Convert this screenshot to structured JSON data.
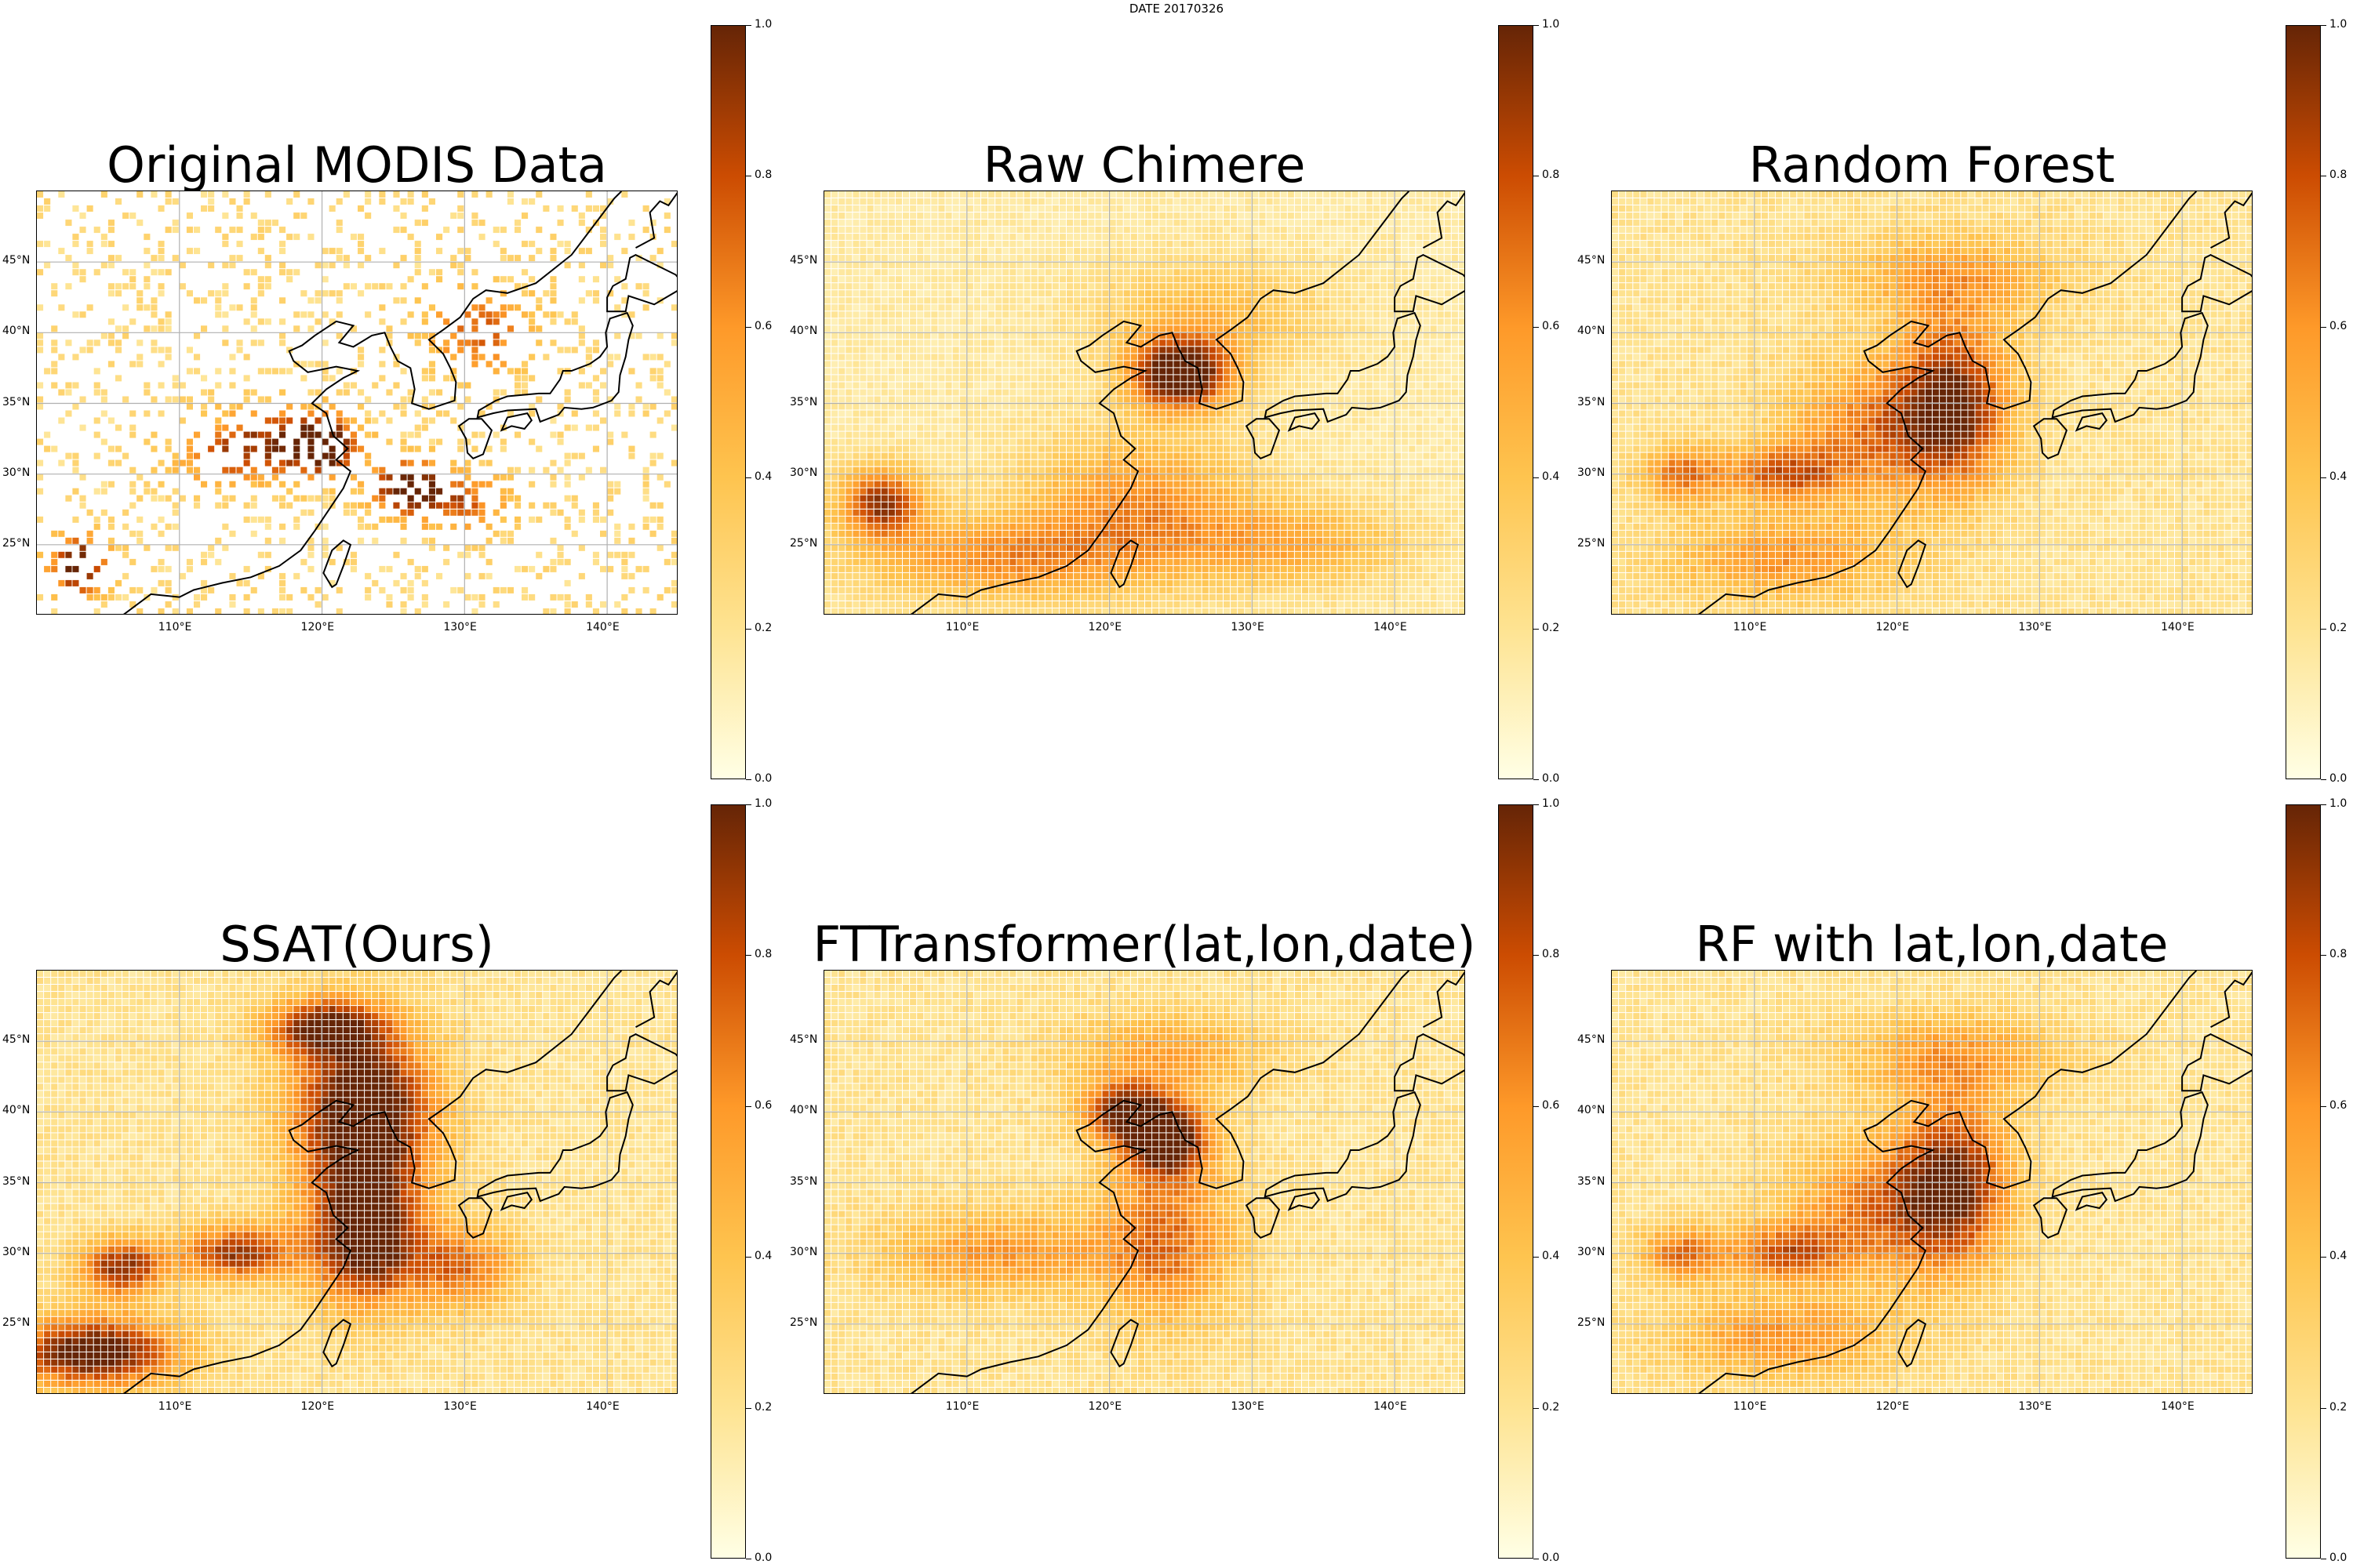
{
  "figure_title": "DATE 20170326",
  "chart_data": [
    {
      "type": "heatmap",
      "title": "Original MODIS Data",
      "xticks": [
        "110°E",
        "120°E",
        "130°E",
        "140°E"
      ],
      "yticks": [
        "25°N",
        "30°N",
        "35°N",
        "40°N",
        "45°N"
      ],
      "colorbar": {
        "ticks": [
          "0.0",
          "0.2",
          "0.4",
          "0.6",
          "0.8",
          "1.0"
        ],
        "range": [
          0,
          1
        ],
        "colormap": "YlOrBr"
      },
      "blobs": [
        [
          114,
          31,
          4,
          2,
          0.5
        ],
        [
          120,
          32,
          2.5,
          2,
          1.0
        ],
        [
          126,
          29,
          2.5,
          2,
          0.9
        ],
        [
          103,
          23.5,
          2,
          2,
          0.9
        ],
        [
          131,
          40,
          4,
          3,
          0.5
        ],
        [
          116,
          33,
          4,
          2,
          0.4
        ],
        [
          130,
          28,
          3,
          2,
          0.5
        ]
      ],
      "coverage": 0.35,
      "base": 0.25
    },
    {
      "type": "heatmap",
      "title": "Raw Chimere",
      "xticks": [
        "110°E",
        "120°E",
        "130°E",
        "140°E"
      ],
      "yticks": [
        "25°N",
        "30°N",
        "35°N",
        "40°N",
        "45°N"
      ],
      "colorbar": {
        "ticks": [
          "0.0",
          "0.2",
          "0.4",
          "0.6",
          "0.8",
          "1.0"
        ],
        "range": [
          0,
          1
        ],
        "colormap": "YlOrBr"
      },
      "blobs": [
        [
          125,
          37,
          3.5,
          2.5,
          1.0
        ],
        [
          104,
          28,
          3,
          2.5,
          0.75
        ],
        [
          122,
          28,
          8,
          5,
          0.45
        ],
        [
          112,
          24,
          10,
          3,
          0.45
        ],
        [
          133,
          25,
          8,
          3,
          0.35
        ],
        [
          127,
          41,
          8,
          4,
          0.3
        ]
      ],
      "coverage": 1,
      "base": 0.15
    },
    {
      "type": "heatmap",
      "title": "Random Forest",
      "xticks": [
        "110°E",
        "120°E",
        "130°E",
        "140°E"
      ],
      "yticks": [
        "25°N",
        "30°N",
        "35°N",
        "40°N",
        "45°N"
      ],
      "colorbar": {
        "ticks": [
          "0.0",
          "0.2",
          "0.4",
          "0.6",
          "0.8",
          "1.0"
        ],
        "range": [
          0,
          1
        ],
        "colormap": "YlOrBr"
      },
      "blobs": [
        [
          124,
          35,
          4,
          6,
          0.75
        ],
        [
          112,
          30,
          4,
          2,
          0.5
        ],
        [
          105,
          30,
          3,
          2,
          0.5
        ],
        [
          118,
          33,
          6,
          5,
          0.45
        ],
        [
          124,
          44,
          8,
          3,
          0.35
        ],
        [
          112,
          24,
          8,
          3,
          0.4
        ]
      ],
      "coverage": 1,
      "base": 0.2
    },
    {
      "type": "heatmap",
      "title": "SSAT(Ours)",
      "xticks": [
        "110°E",
        "120°E",
        "130°E",
        "140°E"
      ],
      "yticks": [
        "25°N",
        "30°N",
        "35°N",
        "40°N",
        "45°N"
      ],
      "colorbar": {
        "ticks": [
          "0.0",
          "0.2",
          "0.4",
          "0.6",
          "0.8",
          "1.0"
        ],
        "range": [
          0,
          1
        ],
        "colormap": "YlOrBr"
      },
      "blobs": [
        [
          123,
          40,
          5,
          6,
          1.0
        ],
        [
          123,
          31,
          4,
          5,
          0.85
        ],
        [
          104,
          23,
          6,
          2.5,
          0.9
        ],
        [
          114,
          30,
          4,
          2,
          0.7
        ],
        [
          106,
          29,
          3,
          2,
          0.75
        ],
        [
          120,
          46,
          4,
          2,
          0.7
        ],
        [
          130,
          29,
          4,
          3,
          0.5
        ]
      ],
      "coverage": 1,
      "base": 0.2
    },
    {
      "type": "heatmap",
      "title": "FTTransformer(lat,lon,date)",
      "xticks": [
        "110°E",
        "120°E",
        "130°E",
        "140°E"
      ],
      "yticks": [
        "25°N",
        "30°N",
        "35°N",
        "40°N",
        "45°N"
      ],
      "colorbar": {
        "ticks": [
          "0.0",
          "0.2",
          "0.4",
          "0.6",
          "0.8",
          "1.0"
        ],
        "range": [
          0,
          1
        ],
        "colormap": "YlOrBr"
      },
      "blobs": [
        [
          124,
          38,
          3,
          2.5,
          0.9
        ],
        [
          121,
          40,
          3,
          2,
          0.7
        ],
        [
          124,
          31,
          5,
          6,
          0.5
        ],
        [
          112,
          30,
          8,
          3,
          0.4
        ],
        [
          124,
          44,
          7,
          3,
          0.35
        ]
      ],
      "coverage": 1,
      "base": 0.2
    },
    {
      "type": "heatmap",
      "title": "RF with lat,lon,date",
      "xticks": [
        "110°E",
        "120°E",
        "130°E",
        "140°E"
      ],
      "yticks": [
        "25°N",
        "30°N",
        "35°N",
        "40°N",
        "45°N"
      ],
      "colorbar": {
        "ticks": [
          "0.0",
          "0.2",
          "0.4",
          "0.6",
          "0.8",
          "1.0"
        ],
        "range": [
          0,
          1
        ],
        "colormap": "YlOrBr"
      },
      "blobs": [
        [
          124,
          35,
          4,
          6,
          0.75
        ],
        [
          112,
          30,
          4,
          2,
          0.5
        ],
        [
          105,
          30,
          3,
          2,
          0.5
        ],
        [
          118,
          33,
          6,
          5,
          0.45
        ],
        [
          124,
          44,
          8,
          3,
          0.35
        ],
        [
          112,
          24,
          8,
          3,
          0.4
        ]
      ],
      "coverage": 1,
      "base": 0.2
    }
  ]
}
